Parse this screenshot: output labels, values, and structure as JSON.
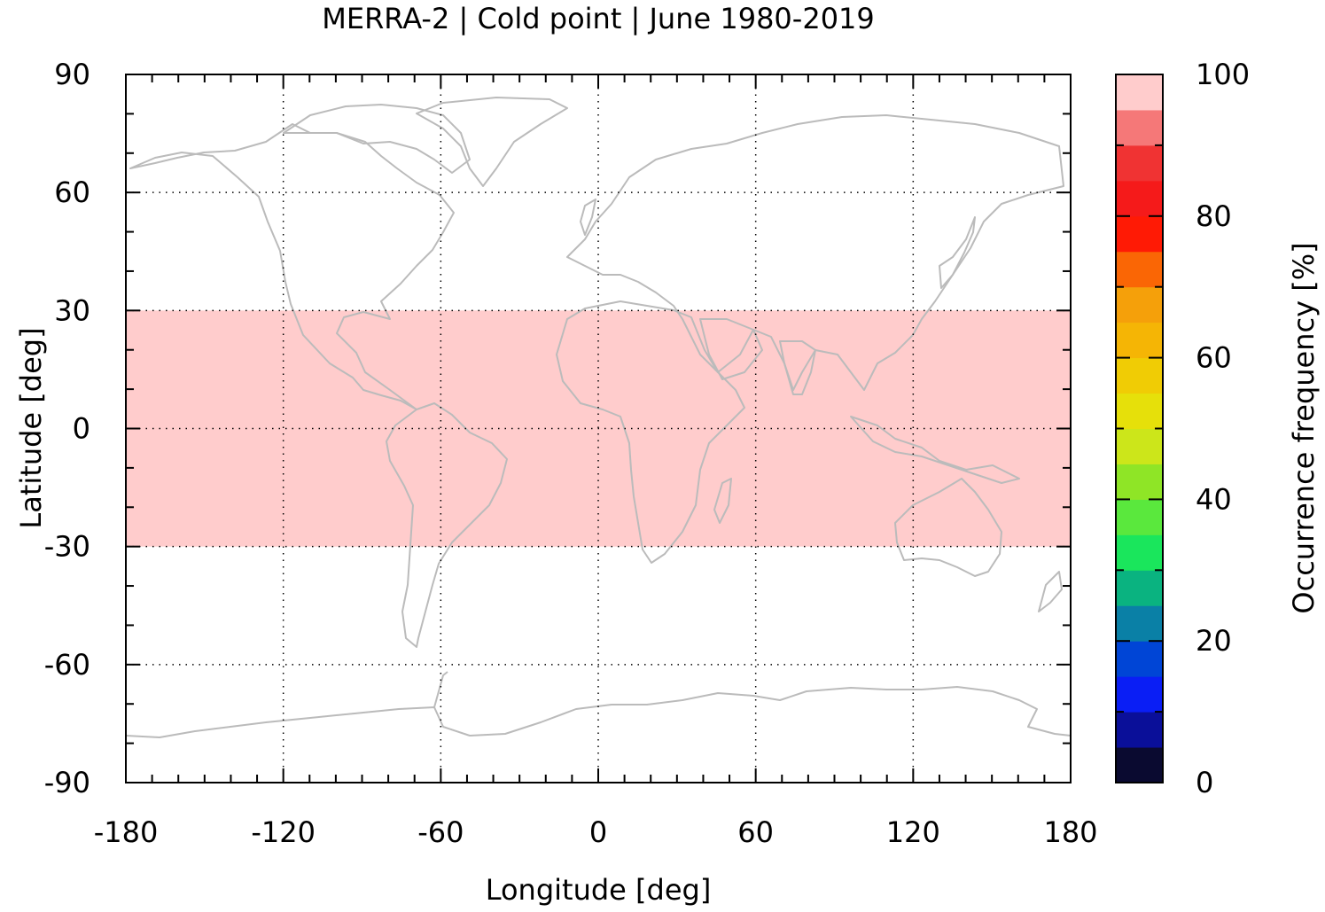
{
  "chart_data": {
    "type": "heatmap",
    "title": "MERRA-2 | Cold point | June 1980-2019",
    "xlabel": "Longitude [deg]",
    "ylabel": "Latitude [deg]",
    "colorbar_label": "Occurrence frequency [%]",
    "xlim": [
      -180,
      180
    ],
    "ylim": [
      -90,
      90
    ],
    "x_ticks": [
      -180,
      -120,
      -60,
      0,
      60,
      120,
      180
    ],
    "y_ticks": [
      90,
      60,
      30,
      0,
      -30,
      -60,
      -90
    ],
    "x_tick_labels": [
      "-180",
      "-120",
      "-60",
      "0",
      "60",
      "120",
      "180"
    ],
    "y_tick_labels": [
      "90",
      "60",
      "30",
      "0",
      "-30",
      "-60",
      "-90"
    ],
    "grid": true,
    "colorbar": {
      "range": [
        0,
        100
      ],
      "ticks": [
        0,
        20,
        40,
        60,
        80,
        100
      ],
      "tick_labels": [
        "0",
        "20",
        "40",
        "60",
        "80",
        "100"
      ],
      "step": 5,
      "colors": [
        "#0a0a30",
        "#0a0f99",
        "#0a1ef5",
        "#0045d6",
        "#0a80a6",
        "#0ab380",
        "#1ae65c",
        "#5ae83d",
        "#8fe526",
        "#cce61a",
        "#e6e00a",
        "#f0cc05",
        "#f5b505",
        "#f5a00a",
        "#fa6605",
        "#ff1a05",
        "#f51a1a",
        "#f03333",
        "#f57878",
        "#ffcccc"
      ]
    },
    "regions": [
      {
        "lat_range": [
          -30,
          30
        ],
        "lon_range": [
          -180,
          180
        ],
        "value": 100,
        "color": "#ffcccc"
      },
      {
        "lat_range": [
          30,
          90
        ],
        "lon_range": [
          -180,
          180
        ],
        "value": null
      },
      {
        "lat_range": [
          -90,
          -30
        ],
        "lon_range": [
          -180,
          180
        ],
        "value": null
      }
    ],
    "coastline_color": "#bbbbbb"
  }
}
